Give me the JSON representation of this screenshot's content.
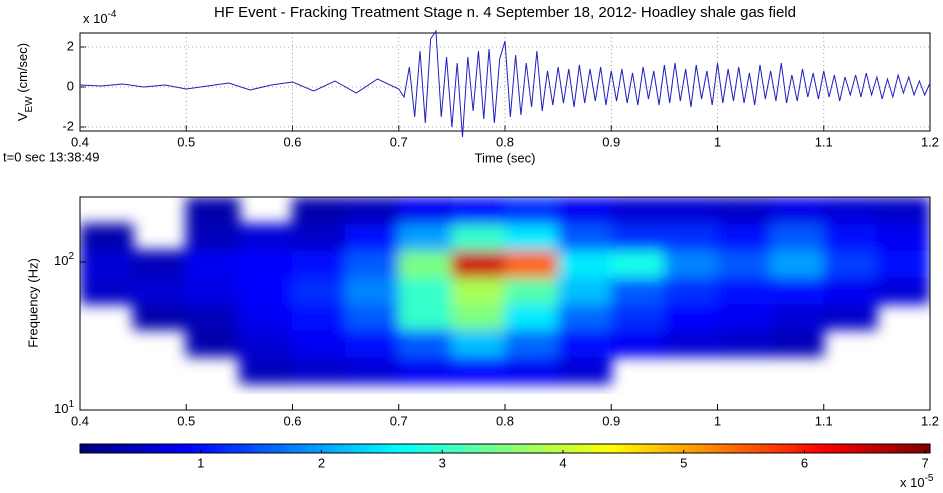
{
  "chart_data": [
    {
      "type": "line",
      "title": "HF Event - Fracking Treatment Stage n. 4 September 18, 2012- Hoadley shale gas field",
      "y_label": "V_EW (cm/sec)",
      "x_label": "Time (sec)",
      "multiplier": "x 10^-4",
      "annotation": "t=0 sec 13:38:49",
      "color": "#1f1fbf",
      "grid": true,
      "xlim": [
        0.4,
        1.2
      ],
      "xticks": [
        0.4,
        0.5,
        0.6,
        0.7,
        0.8,
        0.9,
        1,
        1.1,
        1.2
      ],
      "ylim": [
        -2.2,
        2.7
      ],
      "yticks": [
        -2,
        0,
        2
      ],
      "x": [
        0.4,
        0.42,
        0.44,
        0.46,
        0.48,
        0.5,
        0.52,
        0.54,
        0.56,
        0.58,
        0.6,
        0.62,
        0.64,
        0.66,
        0.68,
        0.7,
        0.705,
        0.71,
        0.715,
        0.72,
        0.725,
        0.73,
        0.735,
        0.74,
        0.745,
        0.75,
        0.755,
        0.76,
        0.765,
        0.77,
        0.775,
        0.78,
        0.785,
        0.79,
        0.795,
        0.8,
        0.805,
        0.81,
        0.815,
        0.82,
        0.825,
        0.83,
        0.835,
        0.84,
        0.845,
        0.85,
        0.855,
        0.86,
        0.865,
        0.87,
        0.875,
        0.88,
        0.885,
        0.89,
        0.895,
        0.9,
        0.905,
        0.91,
        0.915,
        0.92,
        0.925,
        0.93,
        0.935,
        0.94,
        0.945,
        0.95,
        0.955,
        0.96,
        0.965,
        0.97,
        0.975,
        0.98,
        0.985,
        0.99,
        0.995,
        1,
        1.005,
        1.01,
        1.015,
        1.02,
        1.025,
        1.03,
        1.035,
        1.04,
        1.045,
        1.05,
        1.055,
        1.06,
        1.065,
        1.07,
        1.075,
        1.08,
        1.085,
        1.09,
        1.095,
        1.1,
        1.105,
        1.11,
        1.115,
        1.12,
        1.125,
        1.13,
        1.135,
        1.14,
        1.145,
        1.15,
        1.155,
        1.16,
        1.165,
        1.17,
        1.175,
        1.18,
        1.185,
        1.19,
        1.195,
        1.2
      ],
      "values": [
        0.1,
        0.05,
        0.15,
        0,
        0.1,
        -0.1,
        0.05,
        0.2,
        -0.15,
        0.1,
        0.25,
        -0.2,
        0.3,
        -0.3,
        0.4,
        -0.1,
        -0.5,
        1.0,
        -1.5,
        1.8,
        -1.8,
        2.4,
        2.8,
        -1.5,
        1.5,
        -2.0,
        1.2,
        -2.5,
        1.5,
        -1.2,
        1.8,
        -1.6,
        1.9,
        -1.8,
        1.4,
        2.3,
        -1.5,
        1.6,
        -1.4,
        1.2,
        -1.0,
        1.8,
        -1.2,
        0.8,
        -0.9,
        1.0,
        -0.8,
        0.9,
        -1.0,
        1.1,
        -0.8,
        0.9,
        -0.7,
        1.0,
        -0.9,
        0.8,
        -0.7,
        0.9,
        -0.8,
        0.7,
        -0.9,
        1.0,
        -0.6,
        0.8,
        -0.9,
        1.1,
        -0.8,
        1.2,
        -0.7,
        0.9,
        -1.0,
        1.1,
        -0.6,
        0.8,
        -0.9,
        1.2,
        -0.8,
        0.9,
        -0.7,
        1.0,
        -0.8,
        0.7,
        -0.9,
        1.1,
        -0.6,
        0.8,
        -0.7,
        1.2,
        -0.8,
        0.6,
        -0.7,
        0.9,
        -0.5,
        0.7,
        -0.6,
        0.8,
        -0.5,
        0.6,
        -0.7,
        0.5,
        -0.4,
        0.6,
        -0.5,
        0.7,
        -0.4,
        0.5,
        -0.6,
        0.4,
        -0.5,
        0.6,
        -0.3,
        0.5,
        -0.4,
        0.3,
        -0.4,
        0.2
      ]
    },
    {
      "type": "heatmap",
      "y_label": "Frequency (Hz)",
      "log_y": true,
      "xlim": [
        0.4,
        1.2
      ],
      "xticks": [
        0.4,
        0.5,
        0.6,
        0.7,
        0.8,
        0.9,
        1,
        1.1,
        1.2
      ],
      "ylim": [
        10,
        275
      ],
      "yticks": [
        {
          "value": 10,
          "label": "10^1"
        },
        {
          "value": 100,
          "label": "10^2"
        }
      ],
      "xbins": [
        0.4,
        0.45,
        0.5,
        0.55,
        0.6,
        0.65,
        0.7,
        0.75,
        0.8,
        0.85,
        0.9,
        0.95,
        1,
        1.05,
        1.1,
        1.15,
        1.2
      ],
      "ybins": [
        10,
        15,
        23,
        35,
        52,
        79,
        120,
        181,
        275
      ],
      "values": [
        [
          null,
          null,
          null,
          null,
          null,
          null,
          null,
          null,
          null,
          null,
          null,
          null,
          null,
          null,
          null,
          null
        ],
        [
          null,
          null,
          null,
          0.4,
          0.5,
          0.6,
          0.8,
          0.9,
          0.8,
          0.6,
          null,
          null,
          null,
          null,
          null,
          null
        ],
        [
          null,
          null,
          0.3,
          0.6,
          0.8,
          1.0,
          1.5,
          2.2,
          1.6,
          1.0,
          0.8,
          0.6,
          0.5,
          0.4,
          null,
          null
        ],
        [
          null,
          0.3,
          0.4,
          0.8,
          1.0,
          1.5,
          3.0,
          3.5,
          2.5,
          1.6,
          1.2,
          0.9,
          0.8,
          0.6,
          0.5,
          null
        ],
        [
          0.5,
          0.6,
          0.7,
          0.9,
          1.2,
          1.8,
          3.0,
          3.8,
          3.2,
          2.2,
          1.5,
          1.2,
          1.0,
          1.0,
          0.8,
          0.6
        ],
        [
          0.6,
          0.4,
          0.8,
          0.9,
          1.0,
          1.5,
          3.5,
          6.5,
          5.5,
          2.5,
          2.8,
          1.8,
          1.5,
          2.0,
          1.3,
          1.0
        ],
        [
          0.3,
          null,
          0.4,
          0.6,
          0.5,
          1.0,
          2.0,
          3.0,
          2.5,
          1.5,
          1.2,
          1.2,
          1.0,
          1.5,
          1.0,
          0.8
        ],
        [
          null,
          null,
          0.3,
          null,
          0.3,
          0.4,
          0.8,
          1.0,
          1.2,
          0.8,
          0.6,
          0.6,
          0.5,
          0.7,
          0.6,
          0.5
        ]
      ],
      "colorbar": {
        "lim": [
          0,
          7.04
        ],
        "ticks": [
          1,
          2,
          3,
          4,
          5,
          6,
          7
        ],
        "multiplier": "x 10^-5"
      }
    }
  ]
}
